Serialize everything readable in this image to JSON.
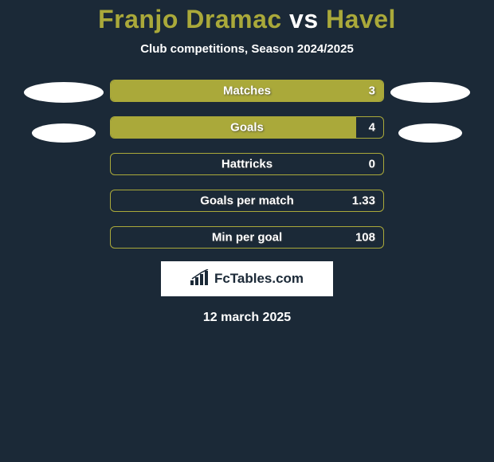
{
  "colors": {
    "background": "#1b2937",
    "accent": "#aaa93a",
    "oval": "#ffffff",
    "text": "#ffffff",
    "shadow": "rgba(60,60,60,0.7)"
  },
  "title": {
    "left": "Franjo Dramac",
    "mid": " vs ",
    "right": "Havel",
    "fontsize": 32
  },
  "subtitle": "Club competitions, Season 2024/2025",
  "bars": {
    "track_width": 344,
    "height": 28,
    "border_radius": 6,
    "label_fontsize": 15,
    "items": [
      {
        "label": "Matches",
        "value": "3",
        "fill_pct": 100,
        "fill_color": "#aaa93a",
        "border_color": "#aaa93a"
      },
      {
        "label": "Goals",
        "value": "4",
        "fill_pct": 90,
        "fill_color": "#aaa93a",
        "border_color": "#aaa93a"
      },
      {
        "label": "Hattricks",
        "value": "0",
        "fill_pct": 0,
        "fill_color": "#aaa93a",
        "border_color": "#aaa93a"
      },
      {
        "label": "Goals per match",
        "value": "1.33",
        "fill_pct": 0,
        "fill_color": "#aaa93a",
        "border_color": "#aaa93a"
      },
      {
        "label": "Min per goal",
        "value": "108",
        "fill_pct": 0,
        "fill_color": "#aaa93a",
        "border_color": "#aaa93a"
      }
    ]
  },
  "side_ovals": {
    "left_count": 2,
    "right_count": 2,
    "color": "#ffffff"
  },
  "logo": {
    "text": "FcTables.com",
    "icon": "bar-growth-icon"
  },
  "footer_date": "12 march 2025"
}
